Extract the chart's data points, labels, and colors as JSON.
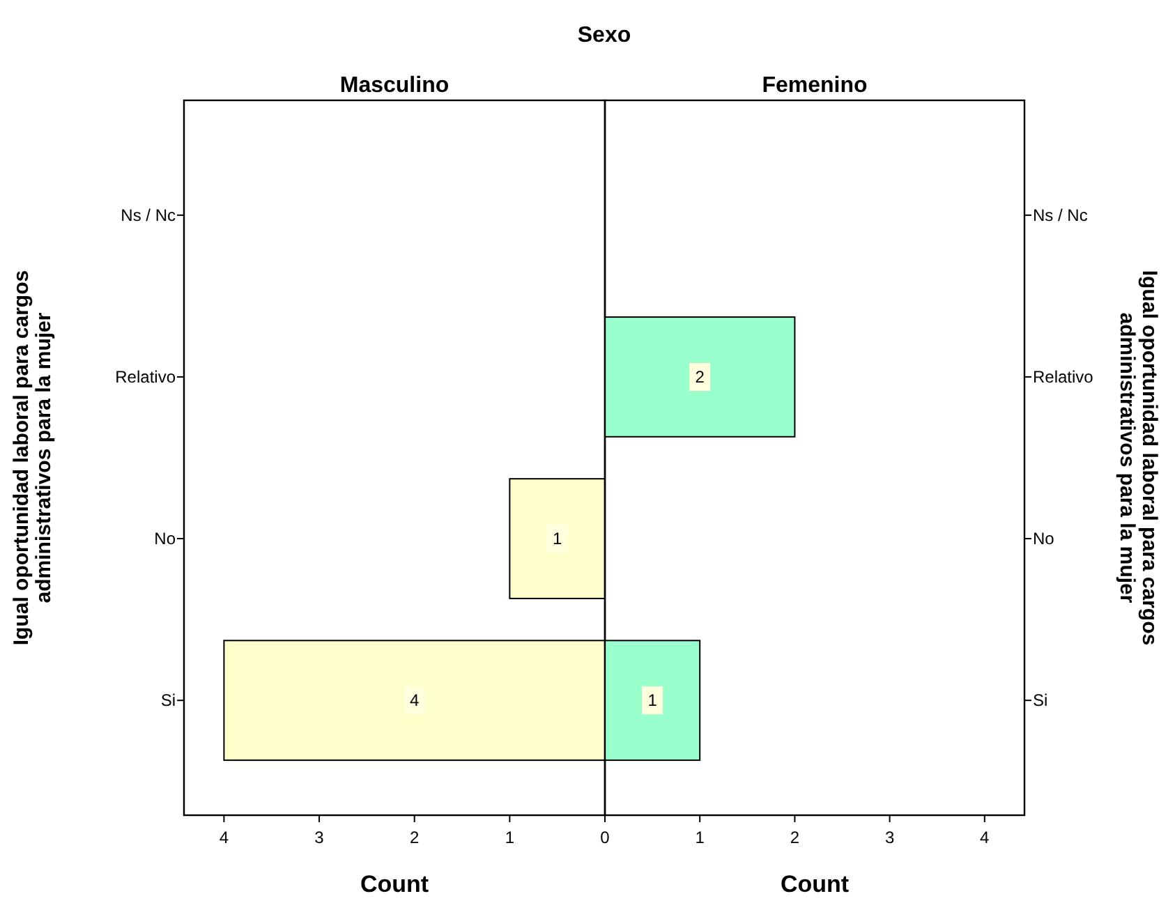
{
  "chart_data": [
    {
      "type": "bar",
      "orientation": "horizontal",
      "title": "Sexo",
      "subtitle": "Masculino",
      "xlabel": "Count",
      "ylabel": "Igual oportunidad laboral para cargos administrativos para la mujer",
      "categories": [
        "Ns / Nc",
        "Relativo",
        "No",
        "Si"
      ],
      "values": [
        null,
        null,
        1,
        4
      ],
      "color": "#ffffcc",
      "xlim": [
        4.42,
        0
      ],
      "xticks": [
        4,
        3,
        2,
        1,
        0
      ],
      "data_labels": true
    },
    {
      "type": "bar",
      "orientation": "horizontal",
      "subtitle": "Femenino",
      "xlabel": "Count",
      "ylabel": "Igual oportunidad laboral para cargos administrativos para la mujer",
      "categories": [
        "Ns / Nc",
        "Relativo",
        "No",
        "Si"
      ],
      "values": [
        null,
        2,
        null,
        1
      ],
      "color": "#99ffcc",
      "xlim": [
        0,
        4.42
      ],
      "xticks": [
        {
          "value": 0,
          "label": null
        },
        1,
        2,
        3,
        4
      ],
      "data_labels": true
    }
  ]
}
